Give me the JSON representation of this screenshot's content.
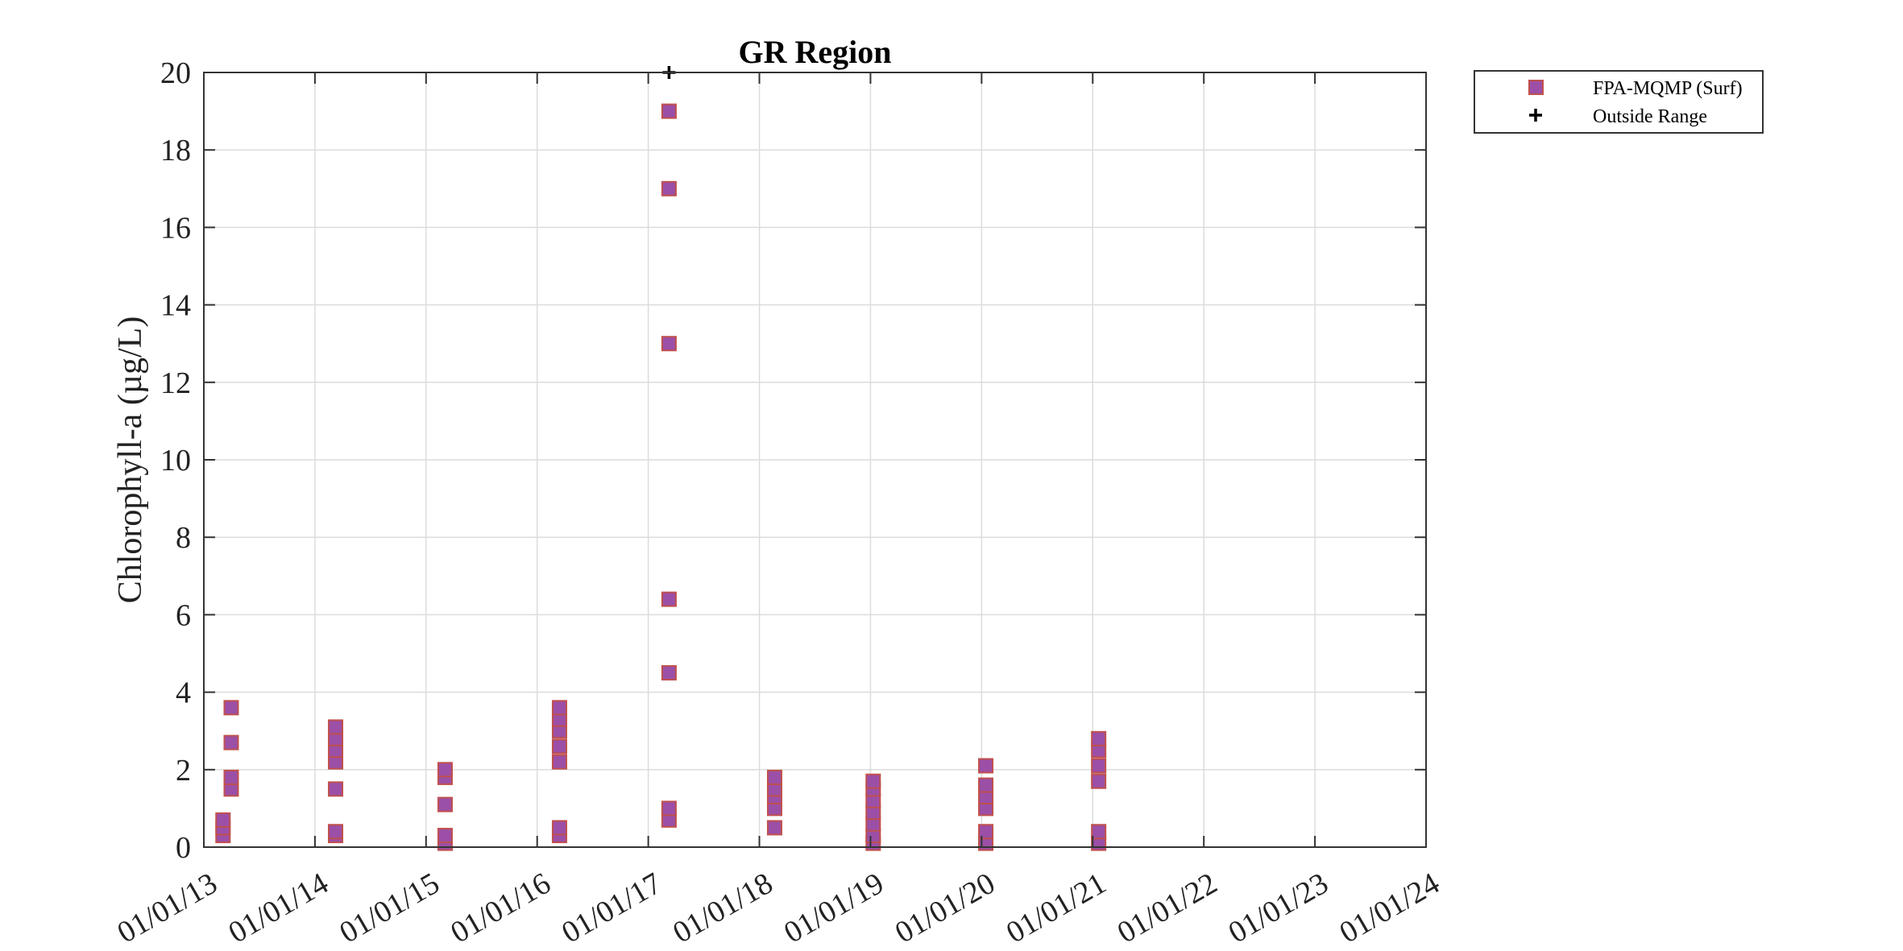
{
  "chart_data": {
    "type": "scatter",
    "title": "GR Region",
    "xlabel": "",
    "ylabel": "Chlorophyll-a (µg/L)",
    "x_tick_labels": [
      "01/01/13",
      "01/01/14",
      "01/01/15",
      "01/01/16",
      "01/01/17",
      "01/01/18",
      "01/01/19",
      "01/01/20",
      "01/01/21",
      "01/01/22",
      "01/01/23",
      "01/01/24"
    ],
    "y_tick_labels": [
      "0",
      "2",
      "4",
      "6",
      "8",
      "10",
      "12",
      "14",
      "16",
      "18",
      "20"
    ],
    "xlim": [
      "2013-01-01",
      "2024-01-01"
    ],
    "ylim": [
      0,
      20
    ],
    "grid": true,
    "legend_position": "outside-top-right",
    "series": [
      {
        "name": "FPA-MQMP (Surf)",
        "marker": "square",
        "color": "#9b4fa6",
        "edge_color": "#c0504d",
        "points": [
          {
            "x": "2013-03-05",
            "y": 0.3
          },
          {
            "x": "2013-03-05",
            "y": 0.5
          },
          {
            "x": "2013-03-05",
            "y": 0.7
          },
          {
            "x": "2013-04-01",
            "y": 1.5
          },
          {
            "x": "2013-04-01",
            "y": 1.8
          },
          {
            "x": "2013-04-01",
            "y": 2.7
          },
          {
            "x": "2013-04-01",
            "y": 3.6
          },
          {
            "x": "2014-03-10",
            "y": 0.3
          },
          {
            "x": "2014-03-10",
            "y": 0.4
          },
          {
            "x": "2014-03-10",
            "y": 1.5
          },
          {
            "x": "2014-03-10",
            "y": 2.2
          },
          {
            "x": "2014-03-10",
            "y": 2.5
          },
          {
            "x": "2014-03-10",
            "y": 2.8
          },
          {
            "x": "2014-03-10",
            "y": 3.1
          },
          {
            "x": "2015-03-05",
            "y": 0.1
          },
          {
            "x": "2015-03-05",
            "y": 0.3
          },
          {
            "x": "2015-03-05",
            "y": 1.1
          },
          {
            "x": "2015-03-05",
            "y": 1.8
          },
          {
            "x": "2015-03-05",
            "y": 2.0
          },
          {
            "x": "2016-03-15",
            "y": 0.3
          },
          {
            "x": "2016-03-15",
            "y": 0.5
          },
          {
            "x": "2016-03-15",
            "y": 2.2
          },
          {
            "x": "2016-03-15",
            "y": 2.6
          },
          {
            "x": "2016-03-15",
            "y": 3.0
          },
          {
            "x": "2016-03-15",
            "y": 3.3
          },
          {
            "x": "2016-03-15",
            "y": 3.6
          },
          {
            "x": "2017-03-10",
            "y": 0.7
          },
          {
            "x": "2017-03-10",
            "y": 1.0
          },
          {
            "x": "2017-03-10",
            "y": 4.5
          },
          {
            "x": "2017-03-10",
            "y": 6.4
          },
          {
            "x": "2017-03-10",
            "y": 13.0
          },
          {
            "x": "2017-03-10",
            "y": 17.0
          },
          {
            "x": "2017-03-10",
            "y": 19.0
          },
          {
            "x": "2018-02-20",
            "y": 0.5
          },
          {
            "x": "2018-02-20",
            "y": 1.0
          },
          {
            "x": "2018-02-20",
            "y": 1.3
          },
          {
            "x": "2018-02-20",
            "y": 1.5
          },
          {
            "x": "2018-02-20",
            "y": 1.8
          },
          {
            "x": "2019-01-10",
            "y": 0.1
          },
          {
            "x": "2019-01-10",
            "y": 0.3
          },
          {
            "x": "2019-01-10",
            "y": 0.6
          },
          {
            "x": "2019-01-10",
            "y": 0.9
          },
          {
            "x": "2019-01-10",
            "y": 1.2
          },
          {
            "x": "2019-01-10",
            "y": 1.5
          },
          {
            "x": "2019-01-10",
            "y": 1.7
          },
          {
            "x": "2020-01-15",
            "y": 0.1
          },
          {
            "x": "2020-01-15",
            "y": 0.4
          },
          {
            "x": "2020-01-15",
            "y": 1.0
          },
          {
            "x": "2020-01-15",
            "y": 1.3
          },
          {
            "x": "2020-01-15",
            "y": 1.6
          },
          {
            "x": "2020-01-15",
            "y": 2.1
          },
          {
            "x": "2021-01-20",
            "y": 0.1
          },
          {
            "x": "2021-01-20",
            "y": 0.4
          },
          {
            "x": "2021-01-20",
            "y": 1.7
          },
          {
            "x": "2021-01-20",
            "y": 2.1
          },
          {
            "x": "2021-01-20",
            "y": 2.5
          },
          {
            "x": "2021-01-20",
            "y": 2.8
          }
        ]
      },
      {
        "name": "Outside Range",
        "marker": "plus",
        "color": "#000000",
        "points": [
          {
            "x": "2017-03-10",
            "y": 20
          }
        ]
      }
    ]
  }
}
